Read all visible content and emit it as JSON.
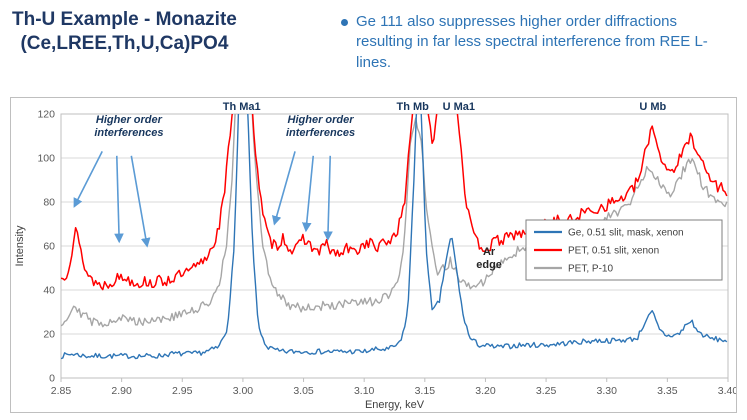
{
  "header": {
    "title_line1": "Th-U Example - Monazite",
    "title_line2": "(Ce,LREE,Th,U,Ca)PO4",
    "bullet_text": "Ge 111 also suppresses higher order diffractions resulting in far less spectral interference from REE L-lines.",
    "title_color": "#1F3864",
    "bullet_color": "#2E74B5"
  },
  "chart_data": {
    "type": "line",
    "title": "",
    "xlabel": "Energy, keV",
    "ylabel": "Intensity",
    "xlim": [
      2.85,
      3.4
    ],
    "ylim": [
      0,
      120
    ],
    "x_ticks": [
      2.85,
      2.9,
      2.95,
      3.0,
      3.05,
      3.1,
      3.15,
      3.2,
      3.25,
      3.3,
      3.35,
      3.4
    ],
    "y_ticks": [
      0,
      20,
      40,
      60,
      80,
      100,
      120
    ],
    "grid": "horizontal",
    "legend_position": "middle-right",
    "series": [
      {
        "name": "Ge, 0.51 slit, mask, xenon",
        "color": "#2E75B6",
        "noise": 1.2,
        "seed": 7,
        "points": [
          [
            2.85,
            10
          ],
          [
            2.86,
            11
          ],
          [
            2.87,
            10
          ],
          [
            2.88,
            10
          ],
          [
            2.89,
            10
          ],
          [
            2.9,
            10
          ],
          [
            2.91,
            10
          ],
          [
            2.92,
            10
          ],
          [
            2.93,
            10
          ],
          [
            2.94,
            11
          ],
          [
            2.95,
            11
          ],
          [
            2.96,
            11
          ],
          [
            2.97,
            12
          ],
          [
            2.98,
            14
          ],
          [
            2.987,
            22
          ],
          [
            2.993,
            60
          ],
          [
            2.997,
            135
          ],
          [
            3.003,
            135
          ],
          [
            3.008,
            60
          ],
          [
            3.013,
            22
          ],
          [
            3.02,
            14
          ],
          [
            3.03,
            12
          ],
          [
            3.04,
            12
          ],
          [
            3.05,
            12
          ],
          [
            3.06,
            12
          ],
          [
            3.07,
            12
          ],
          [
            3.08,
            12
          ],
          [
            3.09,
            12
          ],
          [
            3.1,
            12
          ],
          [
            3.11,
            13
          ],
          [
            3.12,
            13
          ],
          [
            3.13,
            16
          ],
          [
            3.136,
            30
          ],
          [
            3.141,
            90
          ],
          [
            3.144,
            135
          ],
          [
            3.147,
            120
          ],
          [
            3.151,
            60
          ],
          [
            3.156,
            30
          ],
          [
            3.162,
            35
          ],
          [
            3.168,
            55
          ],
          [
            3.172,
            65
          ],
          [
            3.176,
            50
          ],
          [
            3.181,
            30
          ],
          [
            3.187,
            18
          ],
          [
            3.195,
            15
          ],
          [
            3.21,
            14
          ],
          [
            3.23,
            15
          ],
          [
            3.25,
            15
          ],
          [
            3.27,
            16
          ],
          [
            3.29,
            17
          ],
          [
            3.31,
            17
          ],
          [
            3.325,
            18
          ],
          [
            3.333,
            27
          ],
          [
            3.338,
            30
          ],
          [
            3.343,
            22
          ],
          [
            3.35,
            19
          ],
          [
            3.36,
            20
          ],
          [
            3.365,
            24
          ],
          [
            3.37,
            26
          ],
          [
            3.375,
            21
          ],
          [
            3.385,
            18
          ],
          [
            3.4,
            17
          ]
        ]
      },
      {
        "name": "PET, 0.51 slit, xenon",
        "color": "#FF0000",
        "noise": 2.6,
        "seed": 13,
        "points": [
          [
            2.85,
            45
          ],
          [
            2.855,
            48
          ],
          [
            2.859,
            58
          ],
          [
            2.862,
            68
          ],
          [
            2.866,
            58
          ],
          [
            2.871,
            48
          ],
          [
            2.877,
            44
          ],
          [
            2.883,
            42
          ],
          [
            2.889,
            43
          ],
          [
            2.895,
            45
          ],
          [
            2.9,
            46
          ],
          [
            2.905,
            45
          ],
          [
            2.91,
            44
          ],
          [
            2.915,
            43
          ],
          [
            2.92,
            44
          ],
          [
            2.925,
            43
          ],
          [
            2.93,
            44
          ],
          [
            2.935,
            44
          ],
          [
            2.94,
            45
          ],
          [
            2.945,
            46
          ],
          [
            2.95,
            47
          ],
          [
            2.955,
            48
          ],
          [
            2.96,
            50
          ],
          [
            2.965,
            52
          ],
          [
            2.97,
            55
          ],
          [
            2.975,
            60
          ],
          [
            2.98,
            68
          ],
          [
            2.985,
            85
          ],
          [
            2.99,
            115
          ],
          [
            2.994,
            135
          ],
          [
            3.006,
            135
          ],
          [
            3.011,
            100
          ],
          [
            3.016,
            75
          ],
          [
            3.022,
            62
          ],
          [
            3.028,
            60
          ],
          [
            3.033,
            64
          ],
          [
            3.038,
            59
          ],
          [
            3.044,
            58
          ],
          [
            3.05,
            64
          ],
          [
            3.056,
            60
          ],
          [
            3.062,
            57
          ],
          [
            3.068,
            61
          ],
          [
            3.074,
            57
          ],
          [
            3.08,
            56
          ],
          [
            3.086,
            59
          ],
          [
            3.092,
            57
          ],
          [
            3.098,
            60
          ],
          [
            3.104,
            62
          ],
          [
            3.11,
            59
          ],
          [
            3.116,
            61
          ],
          [
            3.122,
            63
          ],
          [
            3.128,
            68
          ],
          [
            3.133,
            78
          ],
          [
            3.138,
            110
          ],
          [
            3.142,
            135
          ],
          [
            3.15,
            135
          ],
          [
            3.156,
            105
          ],
          [
            3.161,
            125
          ],
          [
            3.166,
            135
          ],
          [
            3.174,
            135
          ],
          [
            3.179,
            110
          ],
          [
            3.184,
            80
          ],
          [
            3.19,
            64
          ],
          [
            3.196,
            60
          ],
          [
            3.202,
            59
          ],
          [
            3.208,
            62
          ],
          [
            3.214,
            63
          ],
          [
            3.22,
            64
          ],
          [
            3.226,
            66
          ],
          [
            3.232,
            65
          ],
          [
            3.238,
            67
          ],
          [
            3.244,
            68
          ],
          [
            3.25,
            70
          ],
          [
            3.256,
            71
          ],
          [
            3.262,
            72
          ],
          [
            3.268,
            71
          ],
          [
            3.274,
            73
          ],
          [
            3.28,
            75
          ],
          [
            3.286,
            76
          ],
          [
            3.292,
            77
          ],
          [
            3.298,
            78
          ],
          [
            3.304,
            80
          ],
          [
            3.31,
            81
          ],
          [
            3.316,
            83
          ],
          [
            3.322,
            86
          ],
          [
            3.328,
            93
          ],
          [
            3.333,
            105
          ],
          [
            3.337,
            115
          ],
          [
            3.341,
            108
          ],
          [
            3.346,
            98
          ],
          [
            3.352,
            94
          ],
          [
            3.358,
            97
          ],
          [
            3.364,
            104
          ],
          [
            3.369,
            110
          ],
          [
            3.374,
            105
          ],
          [
            3.38,
            96
          ],
          [
            3.386,
            90
          ],
          [
            3.392,
            87
          ],
          [
            3.4,
            85
          ]
        ]
      },
      {
        "name": "PET, P-10",
        "color": "#A6A6A6",
        "noise": 2.2,
        "seed": 29,
        "points": [
          [
            2.85,
            25
          ],
          [
            2.856,
            28
          ],
          [
            2.861,
            34
          ],
          [
            2.866,
            30
          ],
          [
            2.872,
            27
          ],
          [
            2.878,
            25
          ],
          [
            2.884,
            25
          ],
          [
            2.89,
            26
          ],
          [
            2.896,
            27
          ],
          [
            2.902,
            27
          ],
          [
            2.908,
            26
          ],
          [
            2.914,
            26
          ],
          [
            2.92,
            26
          ],
          [
            2.926,
            27
          ],
          [
            2.932,
            27
          ],
          [
            2.938,
            27
          ],
          [
            2.944,
            28
          ],
          [
            2.95,
            29
          ],
          [
            2.956,
            30
          ],
          [
            2.962,
            31
          ],
          [
            2.968,
            33
          ],
          [
            2.974,
            36
          ],
          [
            2.98,
            42
          ],
          [
            2.986,
            58
          ],
          [
            2.991,
            90
          ],
          [
            2.995,
            135
          ],
          [
            3.006,
            135
          ],
          [
            3.011,
            90
          ],
          [
            3.016,
            62
          ],
          [
            3.022,
            46
          ],
          [
            3.028,
            39
          ],
          [
            3.034,
            35
          ],
          [
            3.04,
            33
          ],
          [
            3.05,
            32
          ],
          [
            3.06,
            32
          ],
          [
            3.07,
            33
          ],
          [
            3.08,
            33
          ],
          [
            3.09,
            34
          ],
          [
            3.1,
            34
          ],
          [
            3.11,
            35
          ],
          [
            3.12,
            37
          ],
          [
            3.127,
            42
          ],
          [
            3.133,
            60
          ],
          [
            3.138,
            105
          ],
          [
            3.142,
            120
          ],
          [
            3.147,
            108
          ],
          [
            3.151,
            80
          ],
          [
            3.156,
            58
          ],
          [
            3.161,
            47
          ],
          [
            3.166,
            50
          ],
          [
            3.171,
            53
          ],
          [
            3.176,
            48
          ],
          [
            3.181,
            43
          ],
          [
            3.187,
            41
          ],
          [
            3.193,
            42
          ],
          [
            3.199,
            44
          ],
          [
            3.205,
            48
          ],
          [
            3.211,
            52
          ],
          [
            3.217,
            55
          ],
          [
            3.223,
            57
          ],
          [
            3.229,
            58
          ],
          [
            3.235,
            59
          ],
          [
            3.241,
            61
          ],
          [
            3.247,
            62
          ],
          [
            3.253,
            63
          ],
          [
            3.259,
            62
          ],
          [
            3.265,
            64
          ],
          [
            3.271,
            65
          ],
          [
            3.277,
            66
          ],
          [
            3.283,
            67
          ],
          [
            3.289,
            69
          ],
          [
            3.295,
            71
          ],
          [
            3.301,
            73
          ],
          [
            3.307,
            75
          ],
          [
            3.313,
            77
          ],
          [
            3.319,
            80
          ],
          [
            3.325,
            86
          ],
          [
            3.33,
            92
          ],
          [
            3.335,
            97
          ],
          [
            3.34,
            92
          ],
          [
            3.346,
            87
          ],
          [
            3.352,
            84
          ],
          [
            3.358,
            88
          ],
          [
            3.364,
            95
          ],
          [
            3.369,
            99
          ],
          [
            3.374,
            94
          ],
          [
            3.38,
            87
          ],
          [
            3.386,
            82
          ],
          [
            3.392,
            80
          ],
          [
            3.4,
            78
          ]
        ]
      }
    ],
    "peak_labels": [
      {
        "text": "Th Ma1",
        "x": 2.999
      },
      {
        "text": "Th Mb",
        "x": 3.14
      },
      {
        "text": "U Ma1",
        "x": 3.178
      },
      {
        "text": "U Mb",
        "x": 3.338
      }
    ],
    "annotations": [
      {
        "lines": [
          "Higher order",
          "interferences"
        ],
        "x": 2.906,
        "y": 116,
        "arrows": [
          [
            2.884,
            103,
            2.861,
            78
          ],
          [
            2.896,
            101,
            2.898,
            62
          ],
          [
            2.908,
            101,
            2.921,
            60
          ]
        ]
      },
      {
        "lines": [
          "Higher order",
          "interferences"
        ],
        "x": 3.064,
        "y": 116,
        "arrows": [
          [
            3.043,
            103,
            3.026,
            70
          ],
          [
            3.058,
            101,
            3.052,
            67
          ],
          [
            3.072,
            101,
            3.07,
            63
          ]
        ]
      }
    ],
    "labels": [
      {
        "lines": [
          "Ar",
          "edge"
        ],
        "x": 3.203,
        "y": 56
      }
    ],
    "colors": {
      "grid": "#D9D9D9",
      "plot_border": "#BFBFBF",
      "tick_text": "#595959",
      "axis_label": "#404040",
      "peak_label": "#17365D",
      "annotation": "#17365D",
      "arrow": "#5B9BD5",
      "free_label": "#262626",
      "legend_border": "#7F7F7F"
    }
  }
}
